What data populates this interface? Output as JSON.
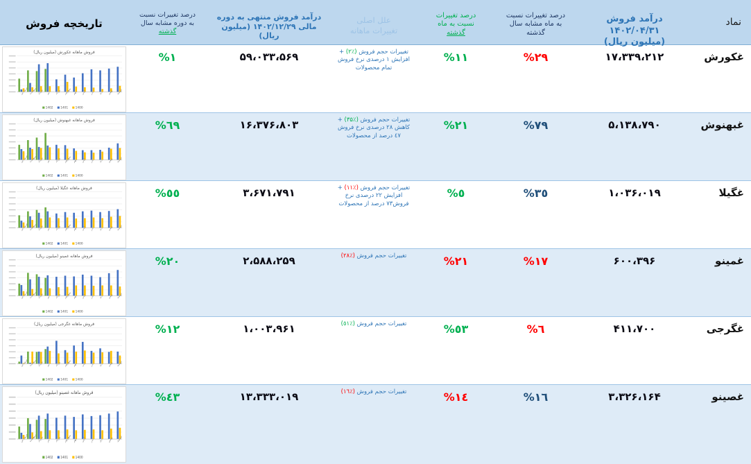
{
  "accent_colors": {
    "header_bg": "#BDD7EE",
    "alt_row_bg": "#DEEBF7",
    "red": "#FF0000",
    "green": "#00B050",
    "navy": "#1F4E79",
    "reason_blue": "#2E75B6"
  },
  "header": {
    "symbol": "نماد",
    "revenue_month": "درآمد فروش\n۱۴۰۲/۰۴/۳۱\n(میلیون ریال)",
    "pct_month_yoy": "درصد تغییرات نسبت\nبه ماه مشابه سال\nگذشته",
    "pct_mom_main": "درصد تغییرات\nنسبت به ماه\n",
    "pct_mom_accent": "گذشته",
    "reason": "علل اصلی\nتغییرات ماهانه",
    "revenue_ytd": "درآمد فروش منتهی به دوره\nمالی ۱۴۰۲/۱۲/۲۹ (میلیون\nریال)",
    "pct_period_main": "درصد تغییرات نسبت\nبه دوره مشابه سال\n",
    "pct_period_accent": "گذشته",
    "history": "تاریخچه فروش"
  },
  "charts_meta": {
    "months": [
      "فروردین",
      "اردیبهشت",
      "خرداد",
      "تیر",
      "مرداد",
      "شهریور",
      "مهر",
      "آبان",
      "آذر",
      "دی",
      "بهمن",
      "اسفند"
    ],
    "legend": [
      {
        "label": "1402",
        "color": "#70AD47"
      },
      {
        "label": "1401",
        "color": "#4472C4"
      },
      {
        "label": "1400",
        "color": "#FFC000"
      }
    ],
    "type": "bar"
  },
  "rows": [
    {
      "symbol": "غکورش",
      "revenue_month": "۱۷،۳۳۹،۲۱۲",
      "pct_month_yoy": {
        "text": "%۲۹",
        "color": "#FF0000"
      },
      "pct_mom": {
        "text": "%۱۱",
        "color": "#00B050"
      },
      "reason": {
        "before": "تغییرات حجم فروش ",
        "pct": "(٪۲)",
        "pct_color": "#00B050",
        "after": " + افزایش ۱ درصدی نرخ فروش تمام محصولات"
      },
      "revenue_ytd": "۵۹،۰۳۳،۵۶۹",
      "pct_period": {
        "text": "%۱",
        "color": "#00B050"
      },
      "chart": {
        "title": "فروش ماهانه غکورش (میلیون ریال)",
        "s1402": [
          37,
          60,
          58,
          64
        ],
        "s1401": [
          7,
          25,
          77,
          80,
          35,
          48,
          40,
          52,
          63,
          60,
          65,
          70
        ],
        "s1400": [
          10,
          13,
          16,
          16,
          16,
          28,
          15,
          13,
          12,
          8,
          10,
          17
        ]
      }
    },
    {
      "symbol": "غبهنوش",
      "revenue_month": "۵،۱۳۸،۷۹۰",
      "pct_month_yoy": {
        "text": "%۷۹",
        "color": "#1F4E79"
      },
      "pct_mom": {
        "text": "%۲۱",
        "color": "#00B050"
      },
      "reason": {
        "before": "تغییرات حجم فروش ",
        "pct": "(٪۳۵)",
        "pct_color": "#00B050",
        "after": " + کاهش ۲۸ درصدی نرخ فروش ٤۷ درصد از محصولات"
      },
      "revenue_ytd": "۱۶،۳۷۶،۸۰۳",
      "pct_period": {
        "text": "%٦۹",
        "color": "#00B050"
      },
      "chart": {
        "title": "فروش ماهانه غبهنوش (میلیون ریال)",
        "s1402": [
          42,
          55,
          62,
          75
        ],
        "s1401": [
          30,
          34,
          36,
          40,
          42,
          41,
          32,
          27,
          27,
          28,
          34,
          46
        ],
        "s1400": [
          24,
          30,
          33,
          35,
          32,
          31,
          25,
          21,
          20,
          23,
          31,
          33
        ]
      }
    },
    {
      "symbol": "غگیلا",
      "revenue_month": "۱،۰۳۶،۰۱۹",
      "pct_month_yoy": {
        "text": "%۳٥",
        "color": "#1F4E79"
      },
      "pct_mom": {
        "text": "%٥",
        "color": "#00B050"
      },
      "reason": {
        "before": "تغییرات حجم فروش ",
        "pct": "(٪۱۱)",
        "pct_color": "#FF0000",
        "after": " + افزایش ۲۲ درصدی نرخ فروش۷۳ درصد از محصولات"
      },
      "revenue_ytd": "۳،۶۷۱،۷۹۱",
      "pct_period": {
        "text": "%٥٥",
        "color": "#00B050"
      },
      "chart": {
        "title": "فروش ماهانه غگیلا (میلیون ریال)",
        "s1402": [
          35,
          46,
          50,
          57
        ],
        "s1401": [
          20,
          32,
          42,
          46,
          40,
          44,
          42,
          46,
          48,
          44,
          47,
          52
        ],
        "s1400": [
          15,
          22,
          26,
          29,
          27,
          29,
          26,
          27,
          29,
          27,
          31,
          33
        ]
      }
    },
    {
      "symbol": "غمینو",
      "revenue_month": "۶۰۰،۳۹۶",
      "pct_month_yoy": {
        "text": "%۱۷",
        "color": "#FF0000"
      },
      "pct_mom": {
        "text": "%۲۱",
        "color": "#FF0000"
      },
      "reason": {
        "before": "تغییرات حجم فروش ",
        "pct": "(٪۲۸)",
        "pct_color": "#FF0000",
        "after": ""
      },
      "revenue_ytd": "۲،۵۸۸،۲۵۹",
      "pct_period": {
        "text": "%۲۰",
        "color": "#00B050"
      },
      "chart": {
        "title": "فروش ماهانه غمینو (میلیون ریال)",
        "s1402": [
          34,
          64,
          60,
          50
        ],
        "s1401": [
          30,
          46,
          53,
          57,
          53,
          56,
          54,
          59,
          56,
          52,
          63,
          72
        ],
        "s1400": [
          13,
          19,
          21,
          21,
          24,
          25,
          29,
          29,
          28,
          29,
          29,
          26
        ]
      }
    },
    {
      "symbol": "غگرجی",
      "revenue_month": "۴۱۱،۷۰۰",
      "pct_month_yoy": {
        "text": "%٦",
        "color": "#FF0000"
      },
      "pct_mom": {
        "text": "%٥۳",
        "color": "#00B050"
      },
      "reason": {
        "before": "تغییرات حجم فروش ",
        "pct": "(٪٥۱)",
        "pct_color": "#00B050",
        "after": ""
      },
      "revenue_ytd": "۱،۰۰۳،۹۶۱",
      "pct_period": {
        "text": "%۱۲",
        "color": "#00B050"
      },
      "chart": {
        "title": "فروش ماهانه غگرجی (میلیون ریال)",
        "s1402": [
          6,
          34,
          33,
          41
        ],
        "s1401": [
          23,
          3,
          34,
          48,
          64,
          38,
          51,
          61,
          36,
          43,
          33,
          34
        ],
        "s1400": [
          2,
          34,
          33,
          36,
          29,
          31,
          34,
          37,
          31,
          32,
          36,
          23
        ]
      }
    },
    {
      "symbol": "غصینو",
      "revenue_month": "۳،۳۲۶،۱۶۴",
      "pct_month_yoy": {
        "text": "%۱٦",
        "color": "#1F4E79"
      },
      "pct_mom": {
        "text": "%۱٤",
        "color": "#FF0000"
      },
      "reason": {
        "before": "تغییرات حجم فروش ",
        "pct": "(٪۱٦)",
        "pct_color": "#FF0000",
        "after": ""
      },
      "revenue_ytd": "۱۳،۳۳۳،۰۱۹",
      "pct_period": {
        "text": "%٤۳",
        "color": "#00B050"
      },
      "chart": {
        "title": "فروش ماهانه غصینو (میلیون ریال)",
        "s1402": [
          30,
          50,
          46,
          48
        ],
        "s1401": [
          15,
          36,
          56,
          61,
          51,
          56,
          53,
          59,
          55,
          57,
          61,
          66
        ],
        "s1400": [
          10,
          16,
          19,
          21,
          21,
          23,
          21,
          22,
          23,
          21,
          25,
          27
        ]
      }
    }
  ]
}
